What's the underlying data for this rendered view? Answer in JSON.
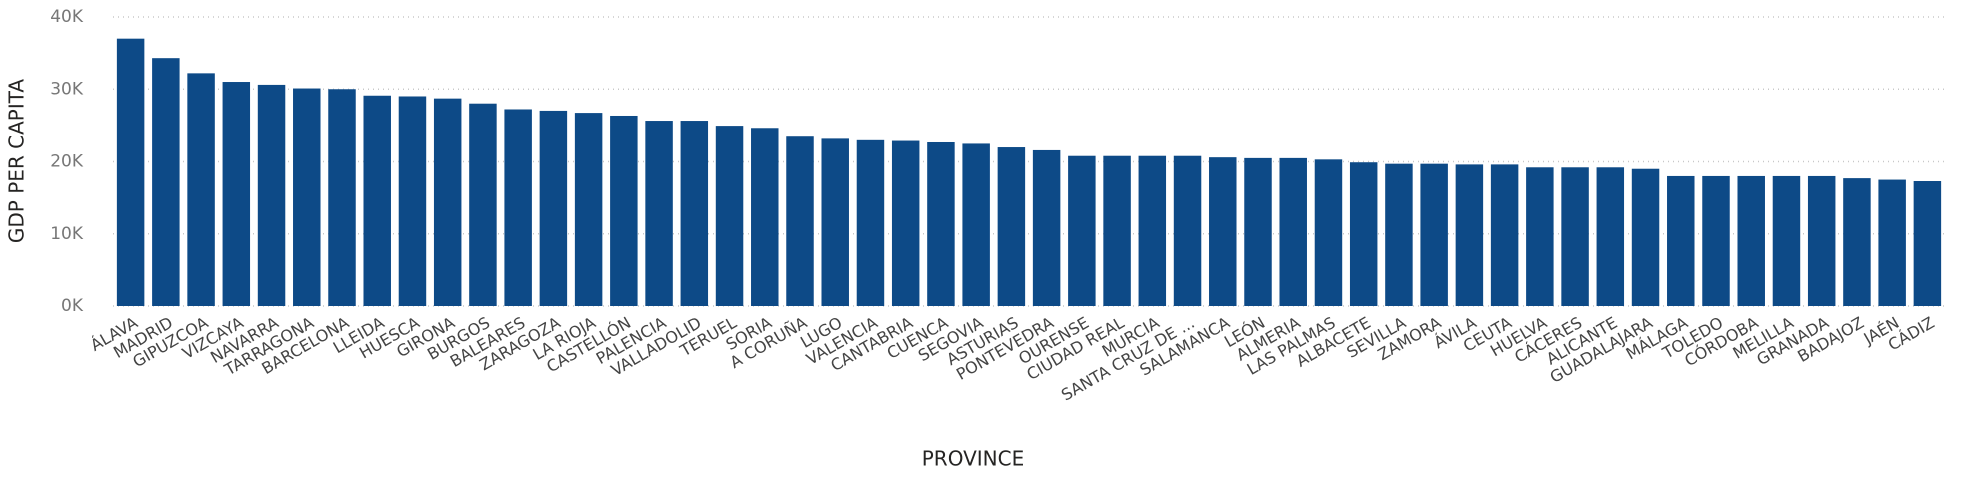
{
  "chart_data": {
    "type": "bar",
    "x_label": "PROVINCE",
    "y_label": "GDP PER CAPITA",
    "categories": [
      "ÁLAVA",
      "MADRID",
      "GIPUZCOA",
      "VIZCAYA",
      "NAVARRA",
      "TARRAGONA",
      "BARCELONA",
      "LLEIDA",
      "HUESCA",
      "GIRONA",
      "BURGOS",
      "BALEARES",
      "ZARAGOZA",
      "LA RIOJA",
      "CASTELLÓN",
      "PALENCIA",
      "VALLADOLID",
      "TERUEL",
      "SORIA",
      "A CORUÑA",
      "LUGO",
      "VALENCIA",
      "CANTABRIA",
      "CUENCA",
      "SEGOVIA",
      "ASTURIAS",
      "PONTEVEDRA",
      "OURENSE",
      "CIUDAD REAL",
      "MURCIA",
      "SANTA CRUZ DE ...",
      "SALAMANCA",
      "LEÓN",
      "ALMERIA",
      "LAS PALMAS",
      "ALBACETE",
      "SEVILLA",
      "ZAMORA",
      "ÁVILA",
      "CEUTA",
      "HUELVA",
      "CÁCERES",
      "ALICANTE",
      "GUADALAJARA",
      "MÁLAGA",
      "TOLEDO",
      "CÓRDOBA",
      "MELILLA",
      "GRANADA",
      "BADAJOZ",
      "JAÉN",
      "CÁDIZ"
    ],
    "values": [
      37000,
      34300,
      32200,
      31000,
      30600,
      30100,
      30000,
      29100,
      29000,
      28700,
      28000,
      27200,
      27000,
      26700,
      26300,
      25600,
      25600,
      24900,
      24600,
      23500,
      23200,
      23000,
      22900,
      22700,
      22500,
      22000,
      21600,
      20800,
      20800,
      20800,
      20800,
      20600,
      20500,
      20500,
      20300,
      19900,
      19700,
      19700,
      19600,
      19600,
      19200,
      19200,
      19200,
      19000,
      18000,
      18000,
      18000,
      18000,
      18000,
      17700,
      17500,
      17300
    ],
    "color": "#0d4a87",
    "ylim": [
      0,
      40000
    ],
    "yticks": [
      {
        "value": 0,
        "label": "0K"
      },
      {
        "value": 10000,
        "label": "10K"
      },
      {
        "value": 20000,
        "label": "20K"
      },
      {
        "value": 30000,
        "label": "30K"
      },
      {
        "value": 40000,
        "label": "40K"
      }
    ],
    "grid": true
  }
}
